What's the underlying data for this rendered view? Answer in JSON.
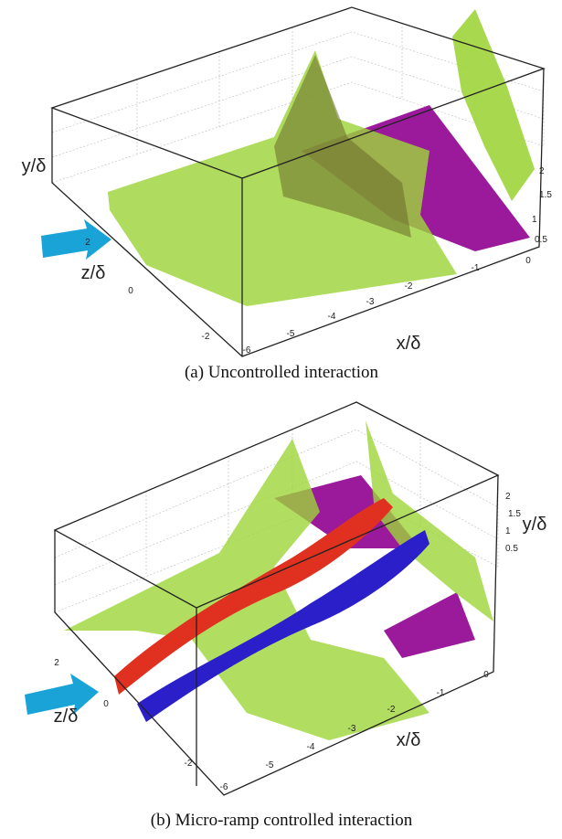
{
  "figures": [
    {
      "axes": {
        "x_label": "x/δ",
        "y_label": "y/δ",
        "z_label": "z/δ",
        "x_ticks": [
          "-6",
          "-5",
          "-4",
          "-3",
          "-2",
          "-1",
          "0"
        ],
        "y_ticks": [
          "0.5",
          "1",
          "1.5",
          "2"
        ],
        "z_ticks": [
          "2",
          "0",
          "-2"
        ]
      },
      "caption": "(a)  Uncontrolled interaction"
    },
    {
      "axes": {
        "x_label": "x/δ",
        "y_label": "y/δ",
        "z_label": "z/δ",
        "x_ticks": [
          "-6",
          "-5",
          "-4",
          "-3",
          "-2",
          "-1",
          "0"
        ],
        "y_ticks": [
          "0.5",
          "1",
          "1.5",
          "2"
        ],
        "z_ticks": [
          "2",
          "0",
          "-2"
        ]
      },
      "caption": "(b) Micro-ramp controlled interaction"
    }
  ]
}
